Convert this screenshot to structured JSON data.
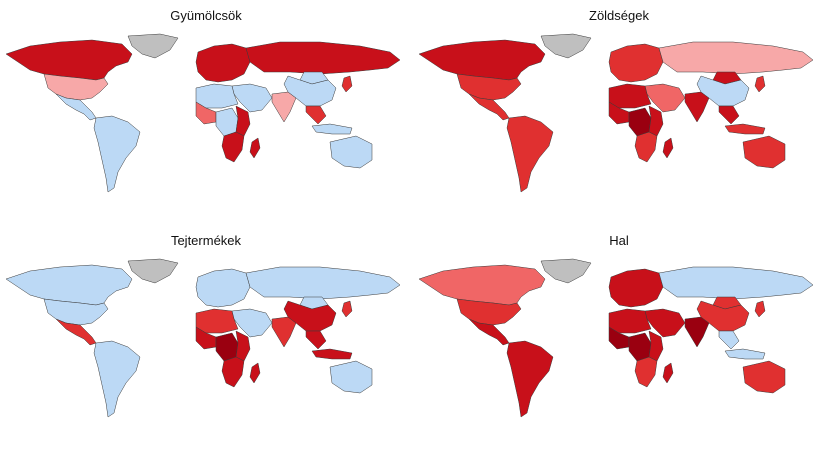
{
  "colors": {
    "no_data": "#bfbfbf",
    "low": "#bcd9f5",
    "c1": "#f7a8a8",
    "c2": "#f06666",
    "c3": "#e03030",
    "c4": "#c8101a",
    "c5": "#9a0010"
  },
  "panels": [
    {
      "title": "Gyümölcsök",
      "regions": {
        "north_america": "c4",
        "usa": "c1",
        "central_america": "low",
        "south_america": "low",
        "greenland": "no_data",
        "europe": "c4",
        "russia": "c4",
        "middle_east": "low",
        "north_africa": "low",
        "west_africa": "c2",
        "central_africa": "low",
        "east_africa": "c4",
        "south_africa": "c4",
        "madagascar": "c4",
        "india": "c1",
        "china": "low",
        "mongolia": "low",
        "southeast_asia": "c3",
        "japan": "c3",
        "indonesia": "low",
        "australia": "low"
      }
    },
    {
      "title": "Zöldségek",
      "regions": {
        "north_america": "c4",
        "usa": "c3",
        "central_america": "c3",
        "south_america": "c3",
        "greenland": "no_data",
        "europe": "c3",
        "russia": "c1",
        "middle_east": "c2",
        "north_africa": "c4",
        "west_africa": "c4",
        "central_africa": "c5",
        "east_africa": "c4",
        "south_africa": "c3",
        "madagascar": "c4",
        "india": "c4",
        "china": "low",
        "mongolia": "c4",
        "southeast_asia": "c4",
        "japan": "c3",
        "indonesia": "c3",
        "australia": "c3"
      }
    },
    {
      "title": "Tejtermékek",
      "regions": {
        "north_america": "low",
        "usa": "low",
        "central_america": "c3",
        "south_america": "low",
        "greenland": "no_data",
        "europe": "low",
        "russia": "low",
        "middle_east": "low",
        "north_africa": "c3",
        "west_africa": "c4",
        "central_africa": "c5",
        "east_africa": "c4",
        "south_africa": "c4",
        "madagascar": "c4",
        "india": "c3",
        "china": "c4",
        "mongolia": "low",
        "southeast_asia": "c4",
        "japan": "c3",
        "indonesia": "c4",
        "australia": "low"
      }
    },
    {
      "title": "Hal",
      "regions": {
        "north_america": "c2",
        "usa": "c3",
        "central_america": "c4",
        "south_america": "c4",
        "greenland": "no_data",
        "europe": "c4",
        "russia": "low",
        "middle_east": "c4",
        "north_africa": "c4",
        "west_africa": "c5",
        "central_africa": "c5",
        "east_africa": "c4",
        "south_africa": "c3",
        "madagascar": "c4",
        "india": "c5",
        "china": "c3",
        "mongolia": "c3",
        "southeast_asia": "low",
        "japan": "c3",
        "indonesia": "low",
        "australia": "c3"
      }
    }
  ]
}
